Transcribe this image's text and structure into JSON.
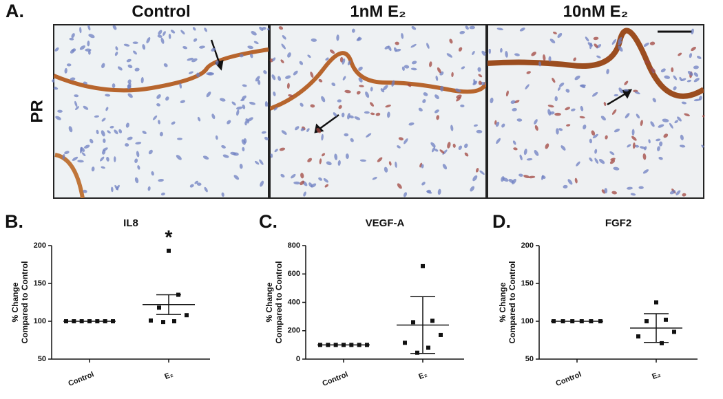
{
  "figure": {
    "panel_label": "A.",
    "row_label": "PR",
    "columns": [
      "Control",
      "1nM E₂",
      "10nM E₂"
    ]
  },
  "chart_data": [
    {
      "type": "scatter",
      "panel_label": "B.",
      "title": "IL8",
      "ylabel": [
        "% Change",
        "Compared to Control"
      ],
      "categories": [
        "Control",
        "E₂"
      ],
      "ylim": [
        50,
        200
      ],
      "yticks": [
        50,
        100,
        150,
        200
      ],
      "color": "#111111",
      "groups": [
        {
          "values": [
            100,
            100,
            100,
            100,
            100,
            100,
            100
          ],
          "mean": 100
        },
        {
          "values": [
            193,
            135,
            118,
            108,
            101,
            100,
            99
          ],
          "mean": 122,
          "error": 13
        }
      ],
      "annotation": "*"
    },
    {
      "type": "scatter",
      "panel_label": "C.",
      "title": "VEGF-A",
      "ylabel": [
        "% Change",
        "Compared to Control"
      ],
      "categories": [
        "Control",
        "E₂"
      ],
      "ylim": [
        0,
        800
      ],
      "yticks": [
        0,
        200,
        400,
        600,
        800
      ],
      "color": "#111111",
      "groups": [
        {
          "values": [
            100,
            100,
            100,
            100,
            100,
            100,
            100
          ],
          "mean": 100
        },
        {
          "values": [
            655,
            270,
            260,
            170,
            115,
            80,
            45
          ],
          "mean": 240,
          "error": 200
        }
      ]
    },
    {
      "type": "scatter",
      "panel_label": "D.",
      "title": "FGF2",
      "ylabel": [
        "% Change",
        "Compared to Control"
      ],
      "categories": [
        "Control",
        "E₂"
      ],
      "ylim": [
        50,
        200
      ],
      "yticks": [
        50,
        100,
        150,
        200
      ],
      "color": "#111111",
      "groups": [
        {
          "values": [
            100,
            100,
            100,
            100,
            100,
            100
          ],
          "mean": 100
        },
        {
          "values": [
            125,
            102,
            100,
            86,
            80,
            71
          ],
          "mean": 91,
          "error": 19
        }
      ]
    }
  ]
}
